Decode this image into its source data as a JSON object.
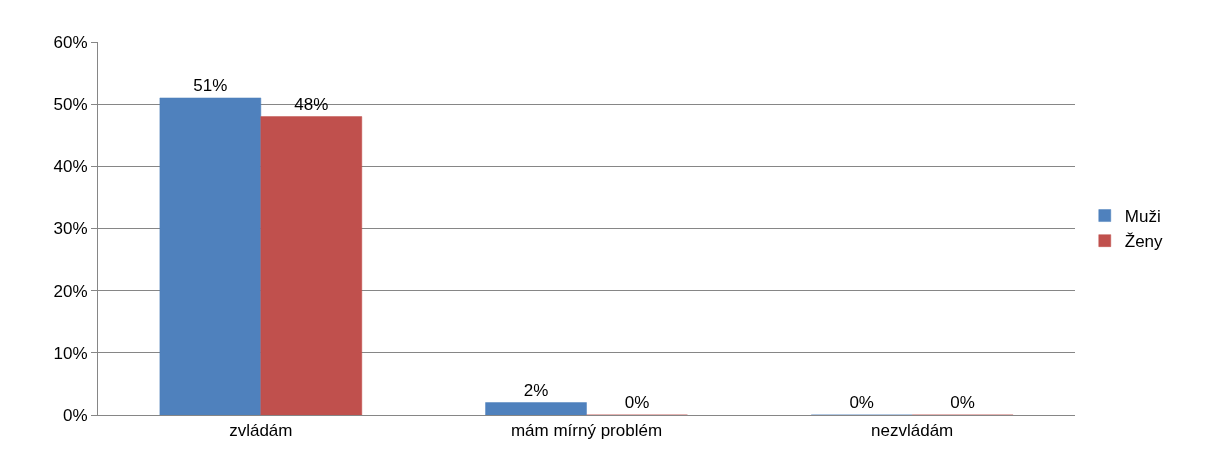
{
  "chart_data": {
    "type": "bar",
    "categories": [
      "zvládám",
      "mám mírný problém",
      "nezvládám"
    ],
    "series": [
      {
        "name": "Muži",
        "color": "#4f81bd",
        "values": [
          51,
          2,
          0
        ],
        "value_labels": [
          "51%",
          "2%",
          "0%"
        ]
      },
      {
        "name": "Ženy",
        "color": "#c0504d",
        "values": [
          48,
          0,
          0
        ],
        "value_labels": [
          "48%",
          "0%",
          "0%"
        ]
      }
    ],
    "ylim": [
      0,
      60
    ],
    "yticks": [
      {
        "value": 0,
        "label": "0%"
      },
      {
        "value": 10,
        "label": "10%"
      },
      {
        "value": 20,
        "label": "20%"
      },
      {
        "value": 30,
        "label": "30%"
      },
      {
        "value": 40,
        "label": "40%"
      },
      {
        "value": 50,
        "label": "50%"
      },
      {
        "value": 60,
        "label": "60%"
      }
    ],
    "grid": "y",
    "legend": "right"
  }
}
